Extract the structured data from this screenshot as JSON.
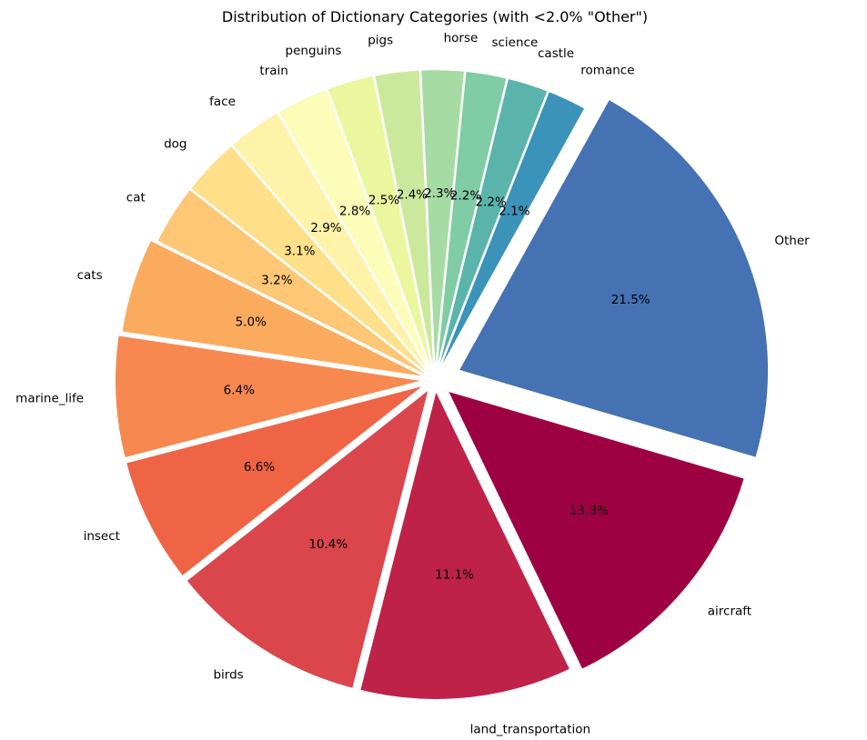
{
  "chart_data": {
    "type": "pie",
    "title": "Distribution of Dictionary Categories (with <2.0% \"Other\")",
    "start_angle_deg": 61,
    "direction": "clockwise",
    "slices": [
      {
        "label": "Other",
        "value": 21.5,
        "pct_label": "21.5%",
        "color": "#4572b3",
        "explode": 0.08
      },
      {
        "label": "aircraft",
        "value": 13.3,
        "pct_label": "13.3%",
        "color": "#9e0142",
        "explode": 0.05
      },
      {
        "label": "land_transportation",
        "value": 11.1,
        "pct_label": "11.1%",
        "color": "#be2249",
        "explode": 0.03
      },
      {
        "label": "birds",
        "value": 10.4,
        "pct_label": "10.4%",
        "color": "#da464c",
        "explode": 0.03
      },
      {
        "label": "insect",
        "value": 6.6,
        "pct_label": "6.6%",
        "color": "#ef6445",
        "explode": 0.03
      },
      {
        "label": "marine_life",
        "value": 6.4,
        "pct_label": "6.4%",
        "color": "#f78850",
        "explode": 0.03
      },
      {
        "label": "cats",
        "value": 5.0,
        "pct_label": "5.0%",
        "color": "#fbab5e",
        "explode": 0.02
      },
      {
        "label": "cat",
        "value": 3.2,
        "pct_label": "3.2%",
        "color": "#fdc776",
        "explode": 0.0
      },
      {
        "label": "dog",
        "value": 3.1,
        "pct_label": "3.1%",
        "color": "#fee08b",
        "explode": 0.0
      },
      {
        "label": "face",
        "value": 2.9,
        "pct_label": "2.9%",
        "color": "#fff2a9",
        "explode": 0.0
      },
      {
        "label": "train",
        "value": 2.8,
        "pct_label": "2.8%",
        "color": "#fbfdb8",
        "explode": 0.0
      },
      {
        "label": "penguins",
        "value": 2.5,
        "pct_label": "2.5%",
        "color": "#eaf79e",
        "explode": 0.0
      },
      {
        "label": "pigs",
        "value": 2.4,
        "pct_label": "2.4%",
        "color": "#cbe99c",
        "explode": 0.0
      },
      {
        "label": "horse",
        "value": 2.3,
        "pct_label": "2.3%",
        "color": "#a6dba4",
        "explode": 0.0
      },
      {
        "label": "science",
        "value": 2.2,
        "pct_label": "2.2%",
        "color": "#80cca5",
        "explode": 0.0
      },
      {
        "label": "castle",
        "value": 2.2,
        "pct_label": "2.2%",
        "color": "#5ab4ac",
        "explode": 0.0
      },
      {
        "label": "romance",
        "value": 2.1,
        "pct_label": "2.1%",
        "color": "#3b93b9",
        "explode": 0.0
      }
    ]
  }
}
